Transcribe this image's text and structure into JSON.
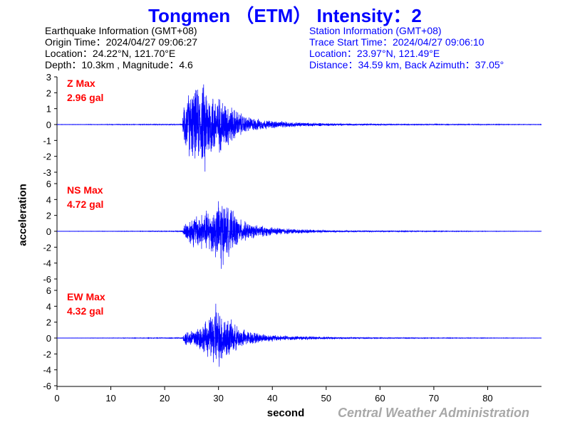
{
  "title": "Tongmen （ETM） Intensity：2",
  "earthquake": {
    "heading": "Earthquake Information  (GMT+08)",
    "origin_time": "Origin Time：2024/04/27 09:06:27",
    "location": "Location：24.22°N, 121.70°E",
    "depth_mag": "Depth：10.3km , Magnitude：4.6"
  },
  "station": {
    "heading": "Station Information  (GMT+08)",
    "trace_start": "Trace Start Time：2024/04/27 09:06:10",
    "location": "Location：23.97°N, 121.49°E",
    "distance": "Distance：34.59 km, Back Azimuth：37.05°"
  },
  "credit": "Central Weather Administration",
  "colors": {
    "title": "#0000ff",
    "trace": "#0000ff",
    "max_label": "#ff0000",
    "credit": "#a8a8a8"
  },
  "chart_data": {
    "type": "line",
    "xlabel": "second",
    "ylabel": "acceleration",
    "xlim": [
      0,
      90
    ],
    "xticks": [
      0,
      10,
      20,
      30,
      40,
      50,
      60,
      70,
      80
    ],
    "grid": false,
    "panels": [
      {
        "name": "Z",
        "max_label": "Z Max",
        "max_value": "2.96 gal",
        "peak": 2.96,
        "ylim": [
          -3,
          3
        ],
        "yticks": [
          3,
          2,
          1,
          0,
          -1,
          -2,
          -3
        ],
        "envelope": [
          [
            0,
            0.01
          ],
          [
            23.3,
            0.03
          ],
          [
            23.6,
            1.6
          ],
          [
            24.5,
            2.3
          ],
          [
            26,
            2.5
          ],
          [
            27.5,
            2.96
          ],
          [
            29,
            2.2
          ],
          [
            31,
            1.8
          ],
          [
            33,
            1.1
          ],
          [
            35,
            0.6
          ],
          [
            38,
            0.35
          ],
          [
            42,
            0.22
          ],
          [
            47,
            0.12
          ],
          [
            55,
            0.06
          ],
          [
            65,
            0.04
          ],
          [
            75,
            0.025
          ],
          [
            90,
            0.015
          ]
        ]
      },
      {
        "name": "NS",
        "max_label": "NS Max",
        "max_value": "4.72 gal",
        "peak": 4.72,
        "ylim": [
          -6,
          6
        ],
        "yticks": [
          6,
          4,
          2,
          0,
          -2,
          -4,
          -6
        ],
        "envelope": [
          [
            0,
            0.01
          ],
          [
            23.3,
            0.05
          ],
          [
            23.8,
            1.2
          ],
          [
            25,
            2.1
          ],
          [
            27,
            2.6
          ],
          [
            29,
            3.3
          ],
          [
            30.5,
            4.72
          ],
          [
            32,
            3.2
          ],
          [
            34,
            1.7
          ],
          [
            36,
            1.0
          ],
          [
            40,
            0.55
          ],
          [
            45,
            0.3
          ],
          [
            50,
            0.15
          ],
          [
            60,
            0.08
          ],
          [
            75,
            0.04
          ],
          [
            90,
            0.02
          ]
        ]
      },
      {
        "name": "EW",
        "max_label": "EW Max",
        "max_value": "4.32 gal",
        "peak": 4.32,
        "ylim": [
          -6,
          6
        ],
        "yticks": [
          6,
          4,
          2,
          0,
          -2,
          -4,
          -6
        ],
        "envelope": [
          [
            0,
            0.01
          ],
          [
            23.3,
            0.05
          ],
          [
            23.8,
            1.0
          ],
          [
            25,
            1.3
          ],
          [
            27,
            1.9
          ],
          [
            28.5,
            3.0
          ],
          [
            29.5,
            4.32
          ],
          [
            31,
            3.4
          ],
          [
            33,
            1.9
          ],
          [
            35,
            1.1
          ],
          [
            38,
            0.6
          ],
          [
            42,
            0.35
          ],
          [
            48,
            0.2
          ],
          [
            55,
            0.1
          ],
          [
            65,
            0.05
          ],
          [
            90,
            0.02
          ]
        ]
      }
    ]
  }
}
